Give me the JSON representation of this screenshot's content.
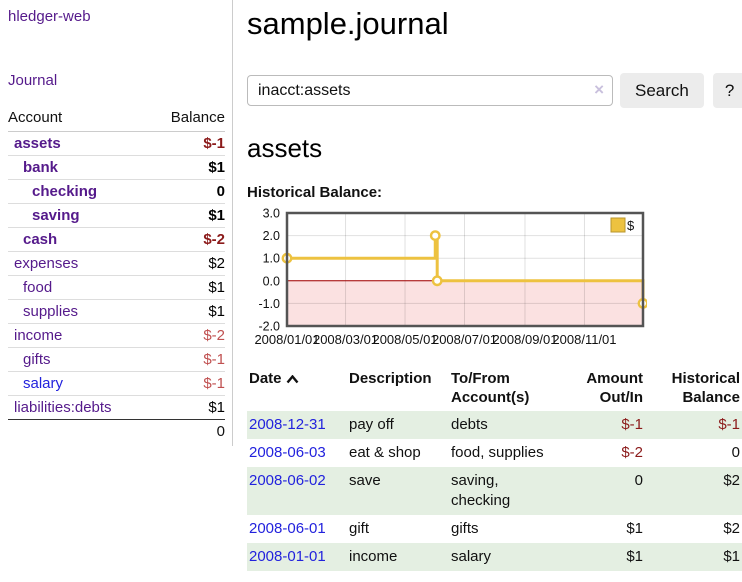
{
  "colors": {
    "link_purple": "#551a8b",
    "link_blue": "#2222dd",
    "negative_strong": "#8b1a1a",
    "negative_light": "#c05050",
    "row_stripe_green": "#e4efe2",
    "chart_series_yellow": "#edc240",
    "chart_negative_region": "#f7c8c8",
    "chart_zero_line": "#a40000"
  },
  "app": {
    "brand": "hledger-web",
    "nav_journal_label": "Journal"
  },
  "sidebar": {
    "headers": {
      "account": "Account",
      "balance": "Balance"
    },
    "accounts": [
      {
        "name": "assets",
        "indent": 1,
        "bold": true,
        "blue": false,
        "balance": "$-1",
        "balance_style": "neg-strong"
      },
      {
        "name": "bank",
        "indent": 2,
        "bold": true,
        "blue": false,
        "balance": "$1",
        "balance_style": "pos-strong"
      },
      {
        "name": "checking",
        "indent": 3,
        "bold": true,
        "blue": false,
        "balance": "0",
        "balance_style": "pos-strong"
      },
      {
        "name": "saving",
        "indent": 3,
        "bold": true,
        "blue": false,
        "balance": "$1",
        "balance_style": "pos-strong"
      },
      {
        "name": "cash",
        "indent": 2,
        "bold": true,
        "blue": false,
        "balance": "$-2",
        "balance_style": "neg-strong"
      },
      {
        "name": "expenses",
        "indent": 1,
        "bold": false,
        "blue": false,
        "balance": "$2",
        "balance_style": "pos"
      },
      {
        "name": "food",
        "indent": 2,
        "bold": false,
        "blue": false,
        "balance": "$1",
        "balance_style": "pos"
      },
      {
        "name": "supplies",
        "indent": 2,
        "bold": false,
        "blue": false,
        "balance": "$1",
        "balance_style": "pos"
      },
      {
        "name": "income",
        "indent": 1,
        "bold": false,
        "blue": false,
        "balance": "$-2",
        "balance_style": "neg"
      },
      {
        "name": "gifts",
        "indent": 2,
        "bold": false,
        "blue": false,
        "balance": "$-1",
        "balance_style": "neg"
      },
      {
        "name": "salary",
        "indent": 2,
        "bold": false,
        "blue": true,
        "balance": "$-1",
        "balance_style": "neg"
      },
      {
        "name": "liabilities:debts",
        "indent": 1,
        "bold": false,
        "blue": false,
        "balance": "$1",
        "balance_style": "pos"
      }
    ],
    "total": "0"
  },
  "header": {
    "title": "sample.journal"
  },
  "search": {
    "value": "inacct:assets",
    "clear_icon": "×",
    "button_label": "Search",
    "help_label": "?"
  },
  "account_page": {
    "heading": "assets",
    "chart_label": "Historical Balance:"
  },
  "chart_data": {
    "type": "line",
    "step": true,
    "title": "Historical Balance:",
    "ylim": [
      -2.0,
      3.0
    ],
    "y_ticks": [
      {
        "label": "3.0",
        "value": 3
      },
      {
        "label": "2.0",
        "value": 2
      },
      {
        "label": "1.0",
        "value": 1
      },
      {
        "label": "0.0",
        "value": 0
      },
      {
        "label": "-1.0",
        "value": -1
      },
      {
        "label": "-2.0",
        "value": -2
      }
    ],
    "x_range_days": [
      1,
      366
    ],
    "x_ticks": [
      {
        "label": "2008/01/01",
        "day": 1
      },
      {
        "label": "2008/03/01",
        "day": 61
      },
      {
        "label": "2008/05/01",
        "day": 122
      },
      {
        "label": "2008/07/01",
        "day": 183
      },
      {
        "label": "2008/09/01",
        "day": 245
      },
      {
        "label": "2008/11/01",
        "day": 306
      }
    ],
    "series": [
      {
        "name": "$",
        "color": "#edc240",
        "points": [
          {
            "date": "2008/01/01",
            "day": 1,
            "value": 1.0
          },
          {
            "date": "2008/06/01",
            "day": 153,
            "value": 2.0
          },
          {
            "date": "2008/06/03",
            "day": 155,
            "value": 0.0
          },
          {
            "date": "2008/12/31",
            "day": 366,
            "value": -1.0
          }
        ]
      }
    ],
    "legend": {
      "label": "$",
      "position": "top-right"
    },
    "grid": true,
    "negative_region_shaded": true
  },
  "register": {
    "headers": {
      "date": "Date",
      "description": "Description",
      "accounts": "To/From Account(s)",
      "amount": "Amount Out/In",
      "balance": "Historical Balance"
    },
    "rows": [
      {
        "date": "2008-12-31",
        "description": "pay off",
        "accounts": "debts",
        "amount": "$-1",
        "amount_neg": true,
        "balance": "$-1",
        "balance_neg": true,
        "striped": true
      },
      {
        "date": "2008-06-03",
        "description": "eat & shop",
        "accounts": "food, supplies",
        "amount": "$-2",
        "amount_neg": true,
        "balance": "0",
        "balance_neg": false,
        "striped": false
      },
      {
        "date": "2008-06-02",
        "description": "save",
        "accounts": "saving, checking",
        "amount": "0",
        "amount_neg": false,
        "balance": "$2",
        "balance_neg": false,
        "striped": true
      },
      {
        "date": "2008-06-01",
        "description": "gift",
        "accounts": "gifts",
        "amount": "$1",
        "amount_neg": false,
        "balance": "$2",
        "balance_neg": false,
        "striped": false
      },
      {
        "date": "2008-01-01",
        "description": "income",
        "accounts": "salary",
        "amount": "$1",
        "amount_neg": false,
        "balance": "$1",
        "balance_neg": false,
        "striped": true
      }
    ]
  }
}
